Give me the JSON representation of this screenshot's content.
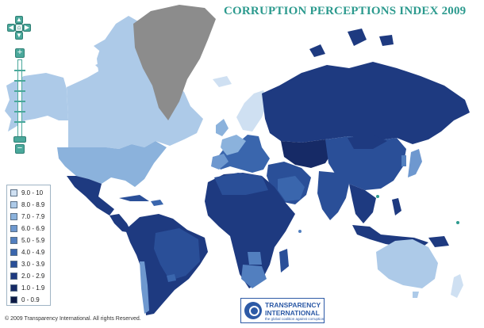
{
  "title": "CORRUPTION PERCEPTIONS INDEX 2009",
  "copyright": "© 2009 Transparency International. All rights Reserved.",
  "logo": {
    "line1": "TRANSPARENCY",
    "line2": "INTERNATIONAL",
    "line3": "the global coalition against corruption"
  },
  "legend": {
    "items": [
      {
        "label": "9.0 - 10",
        "color": "#cfe0f2"
      },
      {
        "label": "8.0 - 8.9",
        "color": "#adcae8"
      },
      {
        "label": "7.0 - 7.9",
        "color": "#8bb2dc"
      },
      {
        "label": "6.0 - 6.9",
        "color": "#6e98cf"
      },
      {
        "label": "5.0 - 5.9",
        "color": "#527fbf"
      },
      {
        "label": "4.0 - 4.9",
        "color": "#3a66ad"
      },
      {
        "label": "3.0 - 3.9",
        "color": "#2a4f98"
      },
      {
        "label": "2.0 - 2.9",
        "color": "#1e3a80"
      },
      {
        "label": "1.0 - 1.9",
        "color": "#162a66"
      },
      {
        "label": "0 - 0.9",
        "color": "#0d1a45"
      }
    ],
    "no_data_color": "#8c8c8c"
  },
  "controls": {
    "pan_up": "up-arrow-icon",
    "pan_down": "down-arrow-icon",
    "pan_left": "left-arrow-icon",
    "pan_right": "right-arrow-icon",
    "home": "home-icon",
    "zoom_in": "plus-icon",
    "zoom_out": "minus-icon"
  },
  "colors": {
    "title": "#2c9a8e",
    "controls": "#4aa89b",
    "ocean": "#ffffff",
    "border": "#ffffff"
  }
}
